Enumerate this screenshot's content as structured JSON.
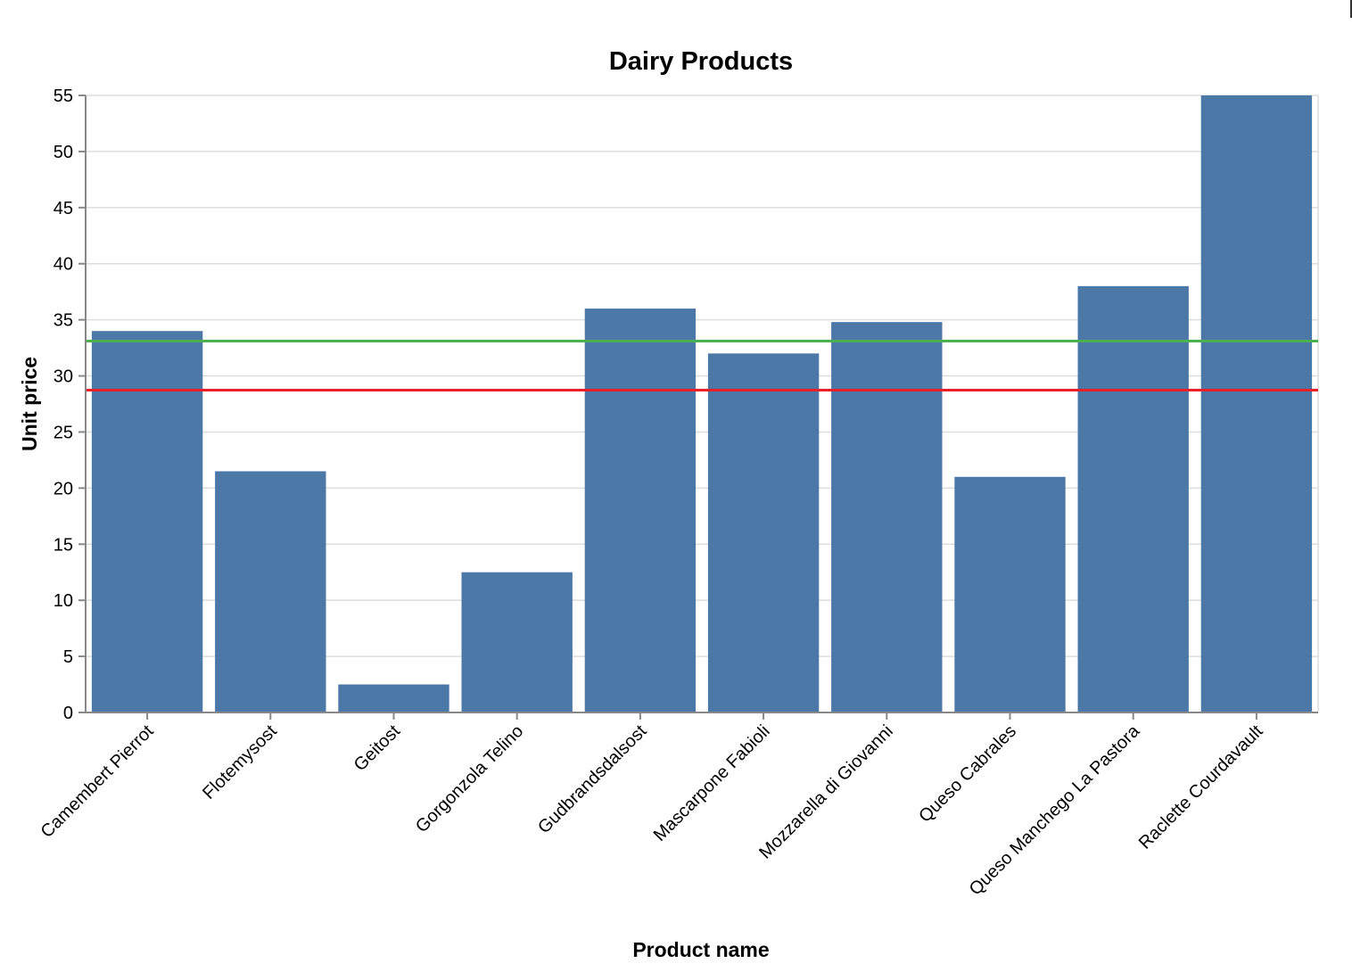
{
  "chart_data": {
    "type": "bar",
    "title": "Dairy Products",
    "xlabel": "Product name",
    "ylabel": "Unit price",
    "categories": [
      "Camembert Pierrot",
      "Flotemysost",
      "Geitost",
      "Gorgonzola Telino",
      "Gudbrandsdalsost",
      "Mascarpone Fabioli",
      "Mozzarella di Giovanni",
      "Queso Cabrales",
      "Queso Manchego La Pastora",
      "Raclette Courdavault"
    ],
    "values": [
      34,
      21.5,
      2.5,
      12.5,
      36,
      32,
      34.8,
      21,
      38,
      55
    ],
    "ylim": [
      0,
      55
    ],
    "yticks": [
      "0",
      "5",
      "10",
      "15",
      "20",
      "25",
      "30",
      "35",
      "40",
      "45",
      "50",
      "55"
    ],
    "reference_lines": [
      {
        "value": 33.1,
        "color": "#4caf50"
      },
      {
        "value": 28.73,
        "color": "#e8202a"
      }
    ],
    "bar_color": "#4c78a8",
    "grid": true,
    "legend": "none"
  }
}
